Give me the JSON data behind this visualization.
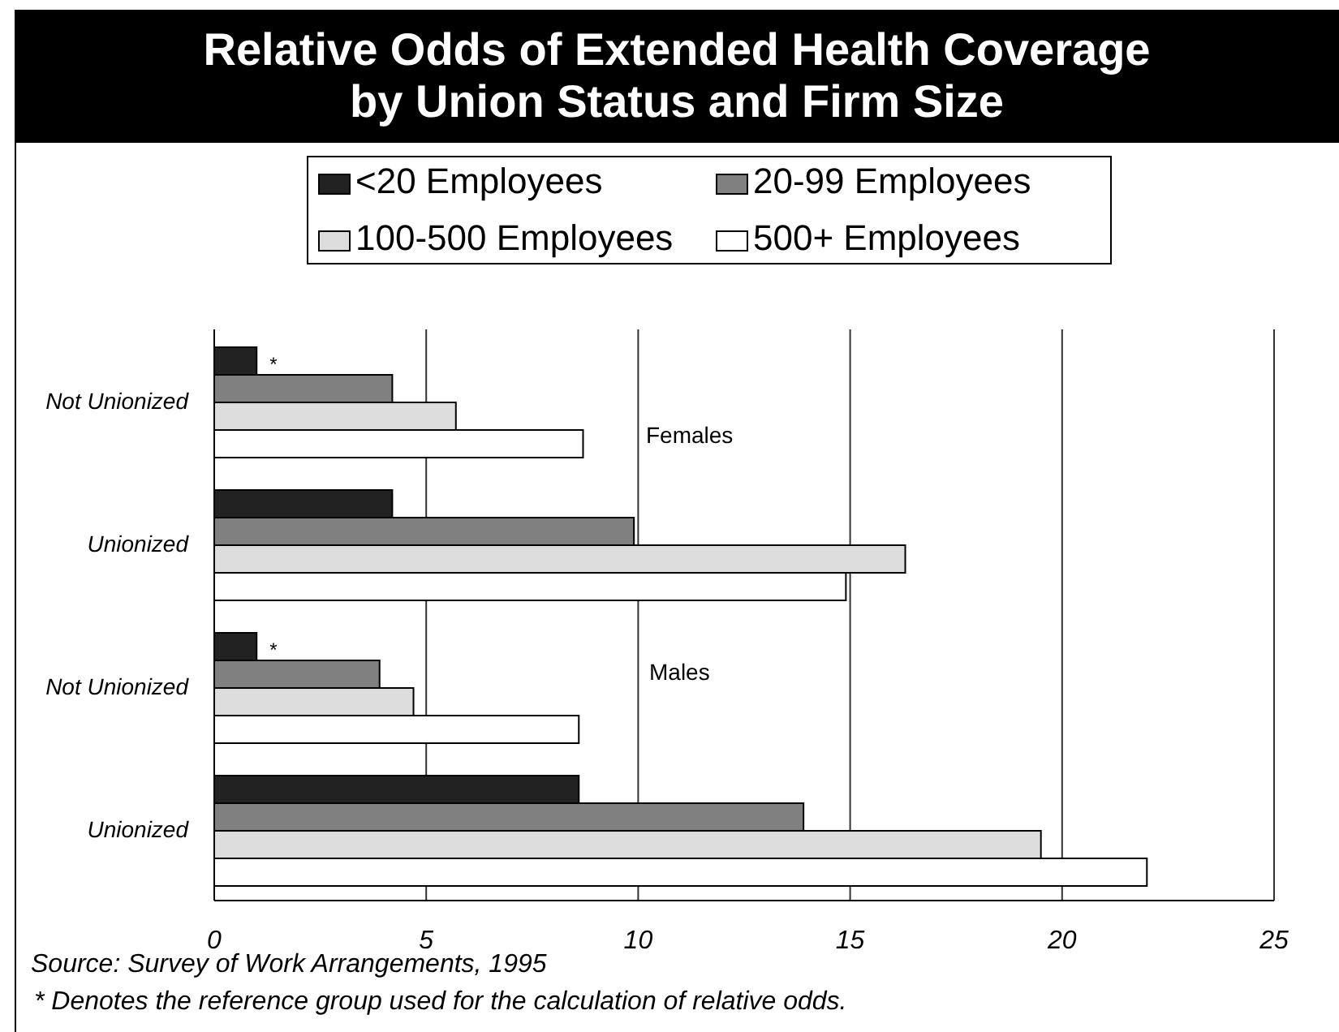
{
  "chart_data": {
    "type": "bar",
    "orientation": "horizontal",
    "title": "Relative Odds of Extended Health Coverage by Union Status and Firm Size",
    "categories": [
      "Not Unionized",
      "Unionized",
      "Not Unionized",
      "Unionized"
    ],
    "series": [
      {
        "name": "<20 Employees",
        "color": "#222222",
        "values": [
          1.0,
          4.2,
          1.0,
          8.6
        ],
        "value_labels": [
          "*",
          null,
          "*",
          null
        ]
      },
      {
        "name": "20-99 Employees",
        "color": "#808080",
        "values": [
          4.2,
          9.9,
          3.9,
          13.9
        ]
      },
      {
        "name": "100-500 Employees",
        "color": "#dddddd",
        "values": [
          5.7,
          16.3,
          4.7,
          19.5
        ]
      },
      {
        "name": "500+ Employees",
        "color": "#ffffff",
        "values": [
          8.7,
          14.9,
          8.6,
          22.0
        ]
      }
    ],
    "xlim": [
      0,
      25
    ],
    "xticks": [
      0,
      5,
      10,
      15,
      20,
      25
    ],
    "grid": "x",
    "legend": "top",
    "annotations": [
      "Females",
      "Males",
      "Source: Survey of Work Arrangements, 1995",
      "* Denotes the reference group used for the calculation of relative odds."
    ]
  }
}
